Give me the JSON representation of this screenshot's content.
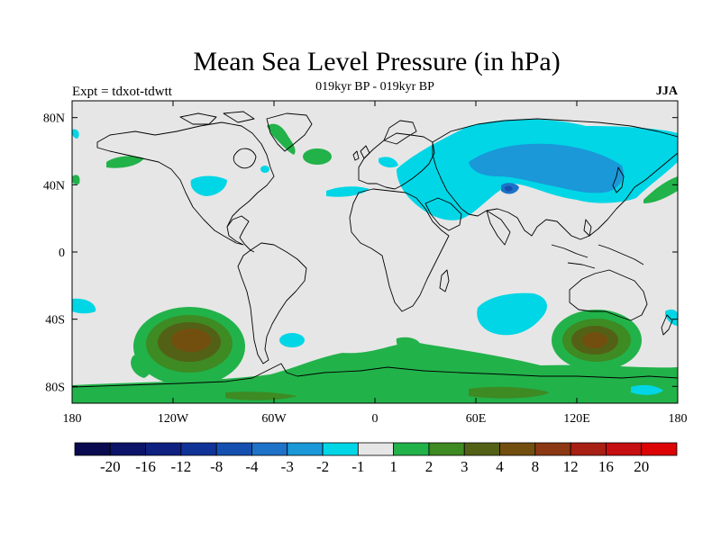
{
  "header": {
    "title": "Mean Sea Level Pressure (in hPa)",
    "subtitle": "019kyr BP - 019kyr BP",
    "experiment": "Expt = tdxot-tdwtt",
    "season": "JJA"
  },
  "map": {
    "lon_range": [
      -180,
      180
    ],
    "lat_range": [
      -90,
      90
    ],
    "x_ticks": [
      {
        "value": -180,
        "label": "180"
      },
      {
        "value": -120,
        "label": "120W"
      },
      {
        "value": -60,
        "label": "60W"
      },
      {
        "value": 0,
        "label": "0"
      },
      {
        "value": 60,
        "label": "60E"
      },
      {
        "value": 120,
        "label": "120E"
      },
      {
        "value": 180,
        "label": "180"
      }
    ],
    "y_ticks": [
      {
        "value": 80,
        "label": "80N"
      },
      {
        "value": 40,
        "label": "40N"
      },
      {
        "value": 0,
        "label": "0"
      },
      {
        "value": -40,
        "label": "40S"
      },
      {
        "value": -80,
        "label": "80S"
      }
    ],
    "background_color": "#e6e6e6",
    "coastline_color": "#000000"
  },
  "colorbar": {
    "colors": [
      "#0a0a50",
      "#0c1469",
      "#0e2080",
      "#103398",
      "#1550b0",
      "#1e72c8",
      "#1a98d8",
      "#00d6e6",
      "#e6e6e6",
      "#22b24a",
      "#3e8a23",
      "#536116",
      "#734f0f",
      "#8c3814",
      "#a81f14",
      "#c60f10",
      "#dc0404"
    ],
    "labels": [
      "-20",
      "-16",
      "-12",
      "-8",
      "-4",
      "-3",
      "-2",
      "-1",
      "1",
      "2",
      "3",
      "4",
      "8",
      "12",
      "16",
      "20"
    ]
  },
  "chart_data": {
    "type": "heatmap",
    "title": "Mean Sea Level Pressure (in hPa)",
    "subtitle": "019kyr BP - 019kyr BP",
    "season": "JJA",
    "x_range_deg": [
      -180,
      180
    ],
    "y_range_deg": [
      -90,
      90
    ],
    "contour_levels": [
      -20,
      -16,
      -12,
      -8,
      -4,
      -3,
      -2,
      -1,
      1,
      2,
      3,
      4,
      8,
      12,
      16,
      20
    ],
    "anomaly_regions": [
      {
        "region": "Southern Ocean south of South Pacific",
        "center": [
          -110,
          -55
        ],
        "peak_level": 4
      },
      {
        "region": "Southern Ocean south of Australia",
        "center": [
          125,
          -55
        ],
        "peak_level": 4
      },
      {
        "region": "Antarctic coastal belt",
        "center": [
          0,
          -78
        ],
        "peak_level": 2
      },
      {
        "region": "Central Asia",
        "center": [
          85,
          45
        ],
        "peak_level": -3
      },
      {
        "region": "Tibetan Plateau",
        "center": [
          80,
          38
        ],
        "peak_level": -4
      },
      {
        "region": "South Indian Ocean",
        "center": [
          65,
          -35
        ],
        "peak_level": -1
      },
      {
        "region": "North Atlantic",
        "center": [
          -35,
          40
        ],
        "peak_level": -1
      }
    ]
  }
}
